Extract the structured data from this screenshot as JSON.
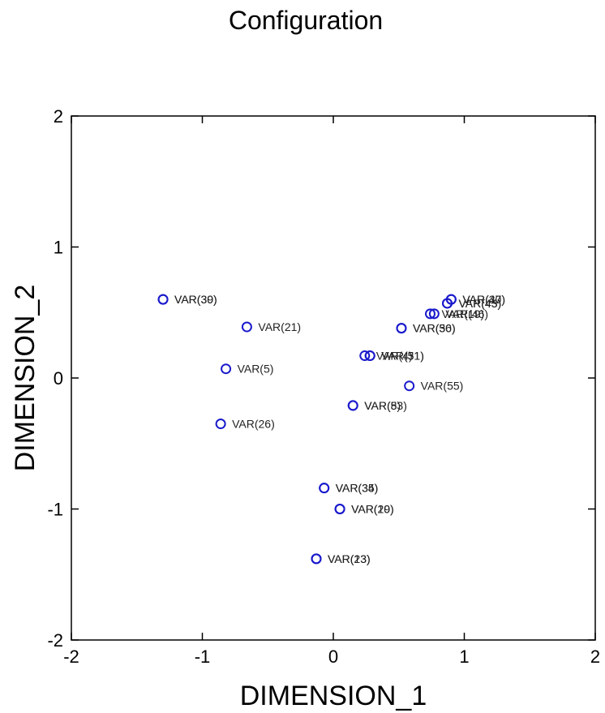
{
  "chart_data": {
    "type": "scatter",
    "title": "Configuration",
    "xlabel": "DIMENSION_1",
    "ylabel": "DIMENSION_2",
    "xlim": [
      -2,
      2
    ],
    "ylim": [
      -2,
      2
    ],
    "xticks": [
      -2,
      -1,
      0,
      1,
      2
    ],
    "yticks": [
      -2,
      -1,
      0,
      1,
      2
    ],
    "xtick_labels": [
      "-2",
      "-1",
      "0",
      "1",
      "2"
    ],
    "ytick_labels": [
      "-2",
      "-1",
      "0",
      "1",
      "2"
    ],
    "grid": false,
    "marker_color": "#1a1acc",
    "points": [
      {
        "x": -1.3,
        "y": 0.6,
        "label": "VAR(39)"
      },
      {
        "x": -1.3,
        "y": 0.6,
        "label": "VAR(30)"
      },
      {
        "x": -0.66,
        "y": 0.39,
        "label": "VAR(21)"
      },
      {
        "x": -0.82,
        "y": 0.07,
        "label": "VAR(5)"
      },
      {
        "x": -0.86,
        "y": -0.35,
        "label": "VAR(26)"
      },
      {
        "x": 0.9,
        "y": 0.6,
        "label": "VAR(37)"
      },
      {
        "x": 0.9,
        "y": 0.6,
        "label": "VAR(40)"
      },
      {
        "x": 0.87,
        "y": 0.57,
        "label": "VAR(43)"
      },
      {
        "x": 0.87,
        "y": 0.57,
        "label": "VAR(45)"
      },
      {
        "x": 0.74,
        "y": 0.49,
        "label": "VAR(19)"
      },
      {
        "x": 0.77,
        "y": 0.49,
        "label": "VAR(46)"
      },
      {
        "x": 0.52,
        "y": 0.38,
        "label": "VAR(36)"
      },
      {
        "x": 0.52,
        "y": 0.38,
        "label": "VAR(50)"
      },
      {
        "x": 0.24,
        "y": 0.17,
        "label": "VAR(4)"
      },
      {
        "x": 0.28,
        "y": 0.17,
        "label": "VAR(31)"
      },
      {
        "x": 0.28,
        "y": 0.17,
        "label": "VAR(51)"
      },
      {
        "x": 0.58,
        "y": -0.06,
        "label": "VAR(55)"
      },
      {
        "x": 0.15,
        "y": -0.21,
        "label": "VAR(8)"
      },
      {
        "x": 0.15,
        "y": -0.21,
        "label": "VAR(53)"
      },
      {
        "x": -0.07,
        "y": -0.84,
        "label": "VAR(34)"
      },
      {
        "x": -0.07,
        "y": -0.84,
        "label": "VAR(35)"
      },
      {
        "x": 0.05,
        "y": -1.0,
        "label": "VAR(10)"
      },
      {
        "x": 0.05,
        "y": -1.0,
        "label": "VAR(29)"
      },
      {
        "x": -0.13,
        "y": -1.38,
        "label": "VAR(13)"
      },
      {
        "x": -0.13,
        "y": -1.38,
        "label": "VAR(23)"
      }
    ]
  }
}
